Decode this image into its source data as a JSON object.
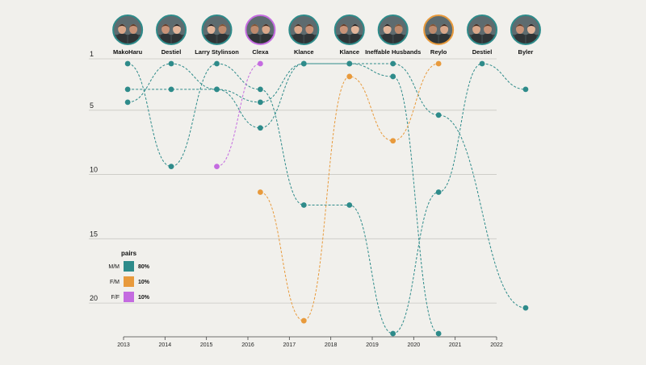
{
  "chart_data": {
    "type": "line",
    "title": "",
    "xlabel": "",
    "ylabel": "",
    "x_ticks": [
      "2013",
      "2014",
      "2015",
      "2016",
      "2017",
      "2018",
      "2019",
      "2020",
      "2021",
      "2022"
    ],
    "xlim": [
      2013,
      2022
    ],
    "y_ticks": [
      "1",
      "5",
      "10",
      "15",
      "20"
    ],
    "ylim": [
      1,
      22
    ],
    "y_inverted": true,
    "grid": true,
    "columns": [
      {
        "name": "MakoHaru",
        "year": 2013.1,
        "ring": "#2e8b8a"
      },
      {
        "name": "Destiel",
        "year": 2014.15,
        "ring": "#2e8b8a"
      },
      {
        "name": "Larry Stylinson",
        "year": 2015.25,
        "ring": "#2e8b8a"
      },
      {
        "name": "Clexa",
        "year": 2016.3,
        "ring": "#c46be0"
      },
      {
        "name": "Klance",
        "year": 2017.35,
        "ring": "#2e8b8a"
      },
      {
        "name": "Klance",
        "year": 2018.45,
        "ring": "#2e8b8a"
      },
      {
        "name": "Ineffable Husbands",
        "year": 2019.5,
        "ring": "#2e8b8a"
      },
      {
        "name": "Reylo",
        "year": 2020.6,
        "ring": "#e89a3c"
      },
      {
        "name": "Destiel",
        "year": 2021.65,
        "ring": "#2e8b8a"
      },
      {
        "name": "Byler",
        "year": 2022.7,
        "ring": "#2e8b8a"
      }
    ],
    "series": [
      {
        "name": "s1",
        "category": "M/M",
        "points": [
          [
            2013.1,
            1
          ],
          [
            2014.15,
            9
          ],
          [
            2015.25,
            1
          ],
          [
            2016.3,
            3
          ],
          [
            2017.35,
            12
          ],
          [
            2018.45,
            12
          ],
          [
            2019.5,
            22
          ],
          [
            2020.6,
            11
          ],
          [
            2021.65,
            1
          ],
          [
            2022.7,
            3
          ]
        ]
      },
      {
        "name": "s2",
        "category": "M/M",
        "points": [
          [
            2013.1,
            4
          ],
          [
            2014.15,
            1
          ],
          [
            2015.25,
            3
          ],
          [
            2016.3,
            6
          ],
          [
            2017.35,
            1
          ],
          [
            2018.45,
            1
          ],
          [
            2019.5,
            2
          ],
          [
            2020.6,
            22
          ]
        ]
      },
      {
        "name": "s3",
        "category": "M/M",
        "points": [
          [
            2013.1,
            3
          ],
          [
            2014.15,
            3
          ],
          [
            2015.25,
            3
          ],
          [
            2016.3,
            4
          ],
          [
            2017.35,
            1
          ],
          [
            2018.45,
            1
          ],
          [
            2019.5,
            1
          ],
          [
            2020.6,
            5
          ],
          [
            2022.7,
            20
          ]
        ]
      },
      {
        "name": "s4",
        "category": "F/F",
        "points": [
          [
            2015.25,
            9
          ],
          [
            2016.3,
            1
          ]
        ]
      },
      {
        "name": "s5",
        "category": "F/M",
        "points": [
          [
            2016.3,
            11
          ],
          [
            2017.35,
            21
          ],
          [
            2018.45,
            2
          ],
          [
            2019.5,
            7
          ],
          [
            2020.6,
            1
          ]
        ]
      }
    ],
    "legend": {
      "title": "pairs",
      "position": "bottom-left",
      "items": [
        {
          "label": "M/M",
          "color": "#2e8b8a",
          "pct": "80%"
        },
        {
          "label": "F/M",
          "color": "#e89a3c",
          "pct": "10%"
        },
        {
          "label": "F/F",
          "color": "#c46be0",
          "pct": "10%"
        }
      ]
    },
    "colors": {
      "M/M": "#2e8b8a",
      "F/M": "#e89a3c",
      "F/F": "#c46be0"
    }
  }
}
